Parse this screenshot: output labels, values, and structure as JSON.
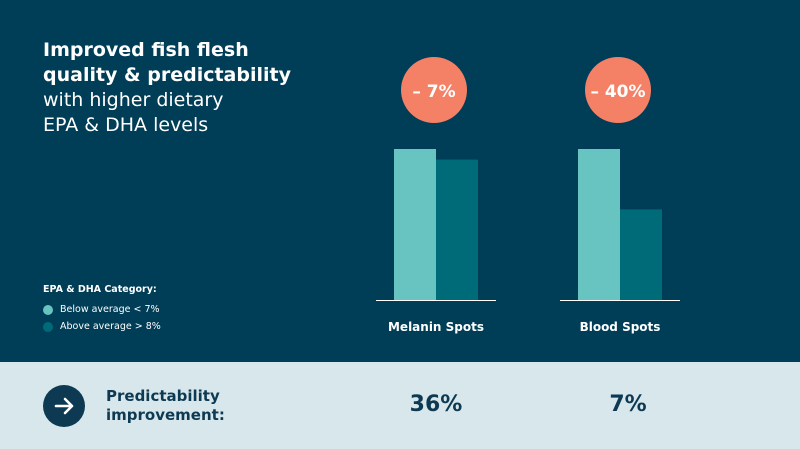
{
  "colors": {
    "background": "#003d56",
    "bottom_background": "#d8e7ec",
    "bar_below": "#67c4c0",
    "bar_above": "#006b78",
    "badge": "#f48066",
    "text_light": "#ffffff",
    "text_dark": "#0d3a52",
    "axis_line": "#ffffff"
  },
  "title": {
    "bold_line1": "Improved fish flesh",
    "bold_line2": "quality & predictability",
    "line3": "with higher dietary",
    "line4": "EPA & DHA levels"
  },
  "legend": {
    "title": "EPA & DHA Category:",
    "items": [
      "Below average < 7%",
      "Above average > 8%"
    ]
  },
  "chart_data": {
    "type": "bar",
    "categories": [
      "Melanin Spots",
      "Blood Spots"
    ],
    "series": [
      {
        "name": "Below average < 7%",
        "values": [
          100,
          100
        ]
      },
      {
        "name": "Above average > 8%",
        "values": [
          93,
          60
        ]
      }
    ],
    "badges": [
      "– 7%",
      "– 40%"
    ],
    "ylim": [
      0,
      100
    ]
  },
  "bottom": {
    "icon": "arrow-right-icon",
    "label_line1": "Predictability",
    "label_line2": "improvement:",
    "values": [
      "36%",
      "7%"
    ]
  }
}
